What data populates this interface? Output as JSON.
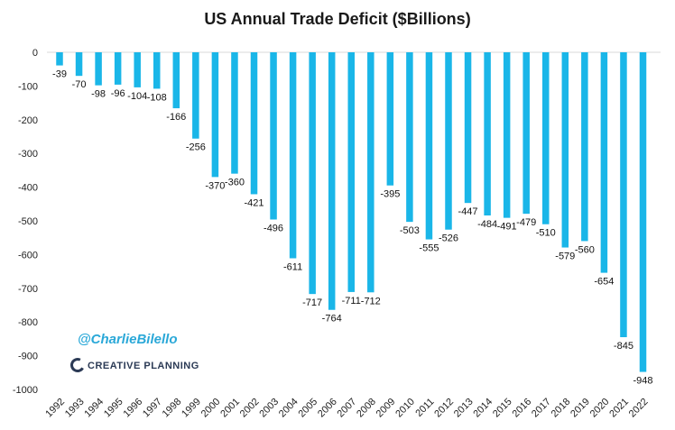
{
  "chart_data": {
    "type": "bar",
    "title": "US Annual Trade Deficit ($Billions)",
    "xlabel": "",
    "ylabel": "",
    "ylim": [
      -1000,
      0
    ],
    "yticks": [
      0,
      -100,
      -200,
      -300,
      -400,
      -500,
      -600,
      -700,
      -800,
      -900,
      -1000
    ],
    "grid": false,
    "bar_color": "#1ab6e8",
    "categories": [
      "1992",
      "1993",
      "1994",
      "1995",
      "1996",
      "1997",
      "1998",
      "1999",
      "2000",
      "2001",
      "2002",
      "2003",
      "2004",
      "2005",
      "2006",
      "2007",
      "2008",
      "2009",
      "2010",
      "2011",
      "2012",
      "2013",
      "2014",
      "2015",
      "2016",
      "2017",
      "2018",
      "2019",
      "2020",
      "2021",
      "2022"
    ],
    "values": [
      -39,
      -70,
      -98,
      -96,
      -104,
      -108,
      -166,
      -256,
      -370,
      -360,
      -421,
      -496,
      -611,
      -717,
      -764,
      -711,
      -712,
      -395,
      -503,
      -555,
      -526,
      -447,
      -484,
      -491,
      -479,
      -510,
      -579,
      -560,
      -654,
      -845,
      -948
    ]
  },
  "watermark": {
    "handle": "@CharlieBilello",
    "handle_color": "#2aa8d8",
    "brand": "CREATIVE PLANNING",
    "brand_mark": "C"
  }
}
